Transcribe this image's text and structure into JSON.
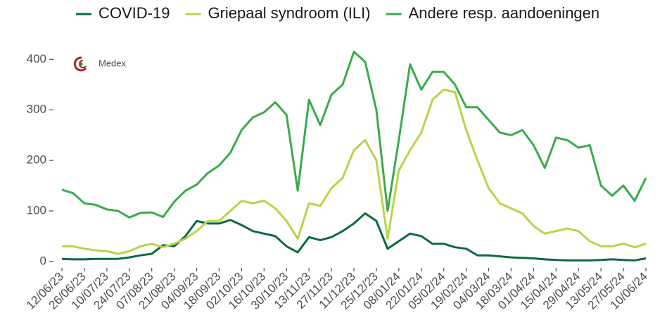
{
  "logo_text": "Medex",
  "chart_data": {
    "type": "line",
    "categories": [
      "12/06/23",
      null,
      "26/06/23",
      null,
      "10/07/23",
      null,
      "24/07/23",
      null,
      "07/08/23",
      null,
      "21/08/23",
      null,
      "04/09/23",
      null,
      "18/09/23",
      null,
      "02/10/23",
      null,
      "16/10/23",
      null,
      "30/10/23",
      null,
      "13/11/23",
      null,
      "27/11/23",
      null,
      "11/12/23",
      null,
      "25/12/23",
      null,
      "08/01/24",
      null,
      "22/01/24",
      null,
      "05/02/24",
      null,
      "19/02/24",
      null,
      "04/03/24",
      null,
      "18/03/24",
      null,
      "01/04/24",
      null,
      "15/04/24",
      null,
      "29/04/24",
      null,
      "13/05/24",
      null,
      "27/05/24",
      null,
      "10/06/24"
    ],
    "series": [
      {
        "name": "COVID-19",
        "color": "#0d6b3e",
        "values": [
          5,
          4,
          4,
          5,
          5,
          5,
          8,
          12,
          15,
          32,
          30,
          50,
          80,
          75,
          75,
          82,
          72,
          60,
          55,
          50,
          30,
          18,
          48,
          42,
          48,
          60,
          75,
          95,
          80,
          25,
          40,
          55,
          50,
          35,
          35,
          28,
          25,
          12,
          12,
          10,
          8,
          7,
          6,
          4,
          3,
          2,
          2,
          2,
          3,
          4,
          3,
          2,
          6
        ]
      },
      {
        "name": "Griepaal syndroom (ILI)",
        "color": "#b8d44a",
        "values": [
          30,
          30,
          25,
          22,
          20,
          15,
          20,
          30,
          35,
          28,
          35,
          45,
          60,
          80,
          80,
          100,
          120,
          115,
          120,
          105,
          80,
          45,
          115,
          110,
          145,
          165,
          220,
          240,
          200,
          45,
          180,
          220,
          255,
          320,
          340,
          335,
          260,
          200,
          145,
          115,
          105,
          95,
          70,
          55,
          60,
          65,
          60,
          40,
          30,
          30,
          35,
          28,
          35
        ]
      },
      {
        "name": "Andere resp. aandoeningen",
        "color": "#3aab4c",
        "values": [
          142,
          135,
          115,
          112,
          103,
          100,
          87,
          96,
          97,
          88,
          118,
          140,
          152,
          175,
          190,
          215,
          260,
          285,
          295,
          315,
          290,
          140,
          320,
          270,
          330,
          350,
          415,
          395,
          300,
          100,
          240,
          390,
          340,
          375,
          375,
          350,
          305,
          305,
          280,
          255,
          250,
          260,
          230,
          185,
          245,
          240,
          225,
          230,
          150,
          130,
          150,
          120,
          165
        ]
      }
    ],
    "ylim": [
      -10,
      420
    ],
    "yticks": [
      0,
      100,
      200,
      300,
      400
    ],
    "grid": false,
    "legend": "top"
  }
}
